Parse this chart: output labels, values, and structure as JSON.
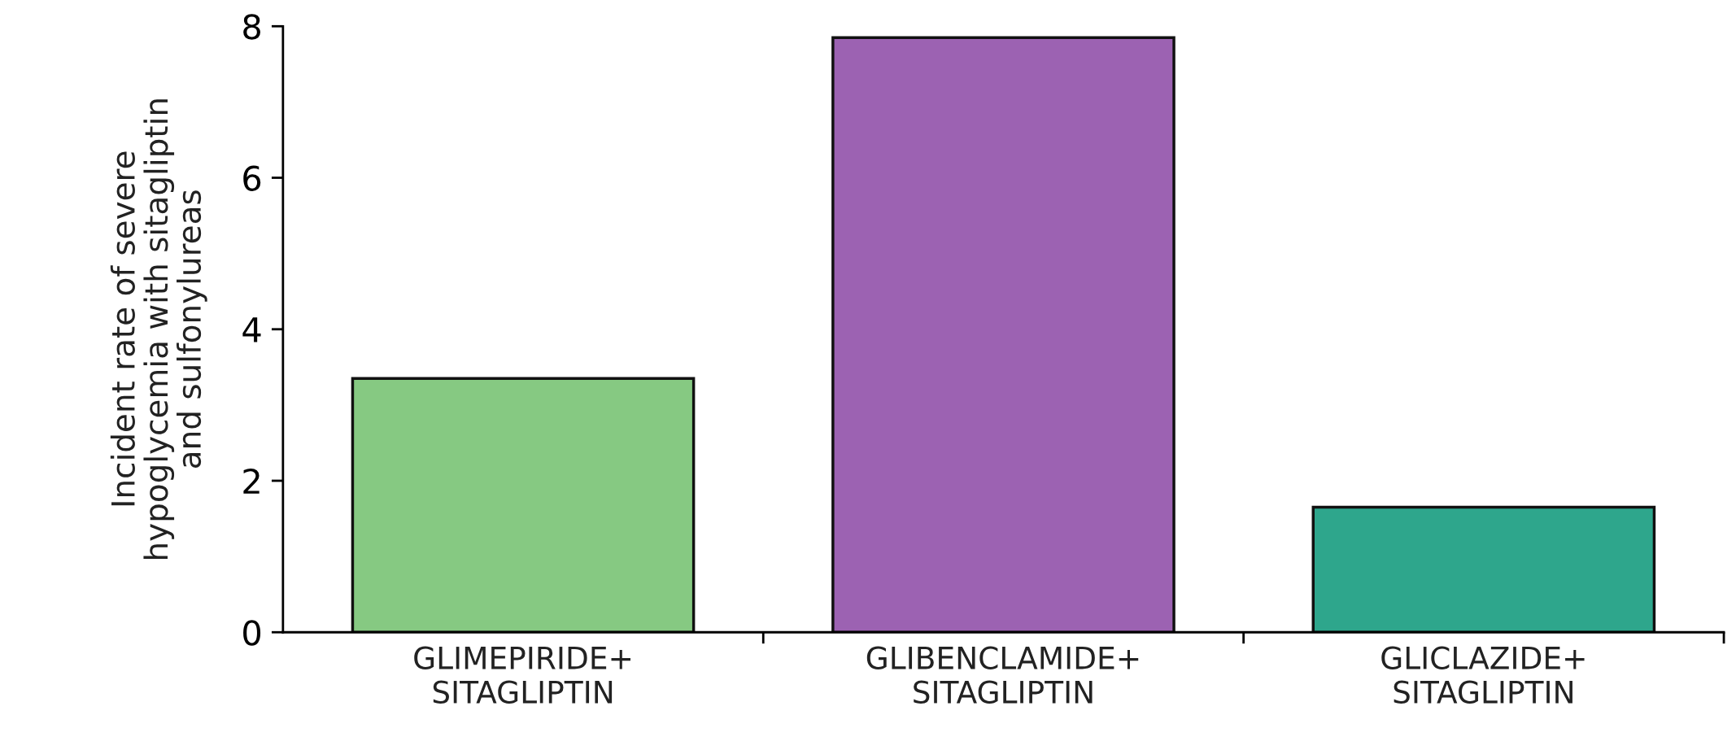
{
  "chart_data": {
    "type": "bar",
    "ylabel": "Incident rate of severe\nhypoglycemia with sitagliptin\nand sulfonylureas",
    "categories": [
      "GLIMEPIRIDE+\nSITAGLIPTIN",
      "GLIBENCLAMIDE+\nSITAGLIPTIN",
      "GLICLAZIDE+\nSITAGLIPTIN"
    ],
    "values": [
      3.35,
      7.85,
      1.65
    ],
    "colors": [
      "#86c982",
      "#9c62b2",
      "#2ea68c"
    ],
    "ylim": [
      0,
      8
    ],
    "yticks": [
      0,
      2,
      4,
      6,
      8
    ],
    "grid": false
  }
}
